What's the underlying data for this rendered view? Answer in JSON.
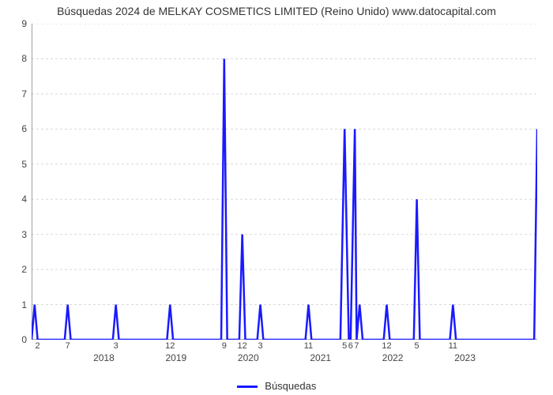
{
  "chart": {
    "type": "line",
    "title": "Búsquedas 2024 de MELKAY COSMETICS  LIMITED (Reino Unido) www.datocapital.com",
    "background_color": "#ffffff",
    "grid_color": "#d9d9d9",
    "grid_dash": "3 3",
    "axis_color": "#444444",
    "line_color": "#1a1aff",
    "line_width": 2.5,
    "title_fontsize": 14,
    "tick_fontsize": 12,
    "plot_border_sides": "left,bottom",
    "y": {
      "lim": [
        0,
        9
      ],
      "ticks": [
        0,
        1,
        2,
        3,
        4,
        5,
        6,
        7,
        8,
        9
      ]
    },
    "x": {
      "lim": [
        0,
        84
      ],
      "minor_tick_months": [
        2,
        7,
        3,
        12,
        9,
        12,
        3,
        11,
        5,
        6,
        7,
        12,
        5,
        11
      ],
      "minor_tick_positions": [
        1,
        6,
        14,
        23,
        32,
        35,
        38,
        46,
        52,
        53,
        54,
        59,
        64,
        70
      ],
      "year_labels": [
        "2018",
        "2019",
        "2020",
        "2021",
        "2022",
        "2023"
      ],
      "year_positions": [
        12,
        24,
        36,
        48,
        60,
        72
      ]
    },
    "series": {
      "label": "Búsquedas",
      "x": [
        0,
        0.5,
        1,
        1.5,
        2,
        5.5,
        6,
        6.5,
        7,
        13.5,
        14,
        14.5,
        15,
        22.5,
        23,
        23.5,
        24,
        31.5,
        32,
        32.5,
        33,
        34.5,
        35,
        35.5,
        36,
        37.5,
        38,
        38.5,
        39,
        45.5,
        46,
        46.5,
        47,
        51.3,
        52,
        52.7,
        53,
        53.7,
        54,
        54.5,
        55,
        58.5,
        59,
        59.5,
        60,
        63.5,
        64,
        64.5,
        65,
        69.5,
        70,
        70.5,
        71,
        83.5,
        84
      ],
      "y": [
        0,
        1,
        0,
        0,
        0,
        0,
        1,
        0,
        0,
        0,
        1,
        0,
        0,
        0,
        1,
        0,
        0,
        0,
        8,
        0,
        0,
        0,
        3,
        0,
        0,
        0,
        1,
        0,
        0,
        0,
        1,
        0,
        0,
        0,
        6,
        0,
        0,
        6,
        0,
        1,
        0,
        0,
        1,
        0,
        0,
        0,
        4,
        0,
        0,
        0,
        1,
        0,
        0,
        0,
        6
      ]
    },
    "legend": {
      "position": "bottom-center",
      "swatch_color": "#1a1aff"
    }
  }
}
